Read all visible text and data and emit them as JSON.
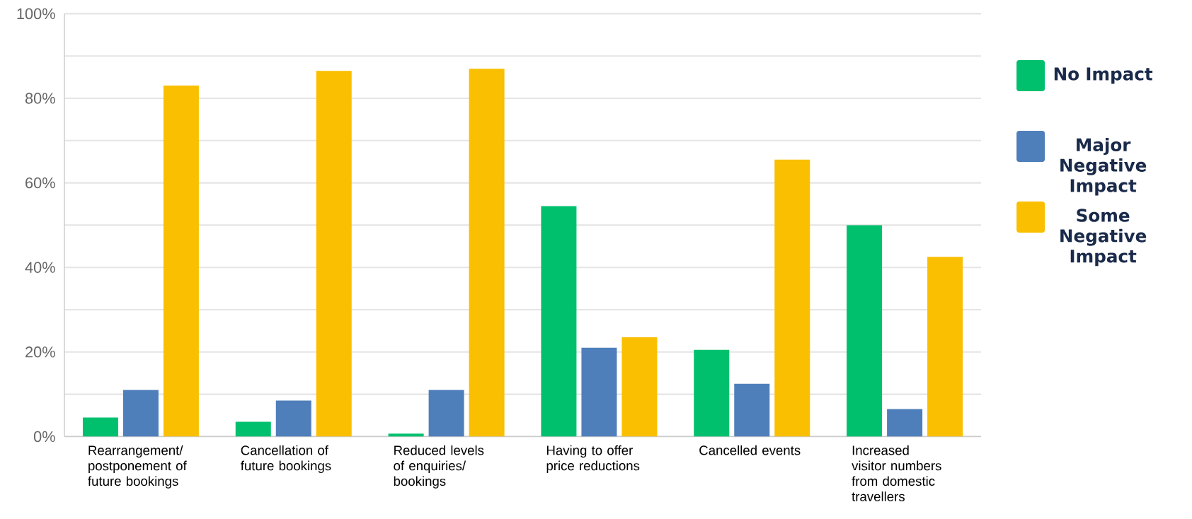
{
  "chart_data": {
    "type": "bar",
    "categories": [
      "Rearrangement/ postponement of future bookings",
      "Cancellation of future bookings",
      "Reduced levels of enquiries/ bookings",
      "Having to offer price reductions",
      "Cancelled events",
      "Increased visitor numbers from domestic travellers"
    ],
    "series": [
      {
        "name": "No Impact",
        "color": "#00c06e",
        "values": [
          4.5,
          3.5,
          0.7,
          54.5,
          20.5,
          50
        ]
      },
      {
        "name": "Major Negative Impact",
        "color": "#4f7fba",
        "values": [
          11,
          8.5,
          11,
          21,
          12.5,
          6.5
        ]
      },
      {
        "name": "Some Negative Impact",
        "color": "#f9bf00",
        "values": [
          83,
          86.5,
          87,
          23.5,
          65.5,
          42.5
        ]
      }
    ],
    "ylim": [
      0,
      100
    ],
    "yticks": [
      {
        "value": 0,
        "label": "0%"
      },
      {
        "value": 10,
        "label": null
      },
      {
        "value": 20,
        "label": "20%"
      },
      {
        "value": 30,
        "label": null
      },
      {
        "value": 40,
        "label": "40%"
      },
      {
        "value": 50,
        "label": null
      },
      {
        "value": 60,
        "label": "60%"
      },
      {
        "value": 70,
        "label": null
      },
      {
        "value": 80,
        "label": "80%"
      },
      {
        "value": 90,
        "label": null
      },
      {
        "value": 100,
        "label": "100%"
      }
    ],
    "grid": "y",
    "legend": "right"
  }
}
